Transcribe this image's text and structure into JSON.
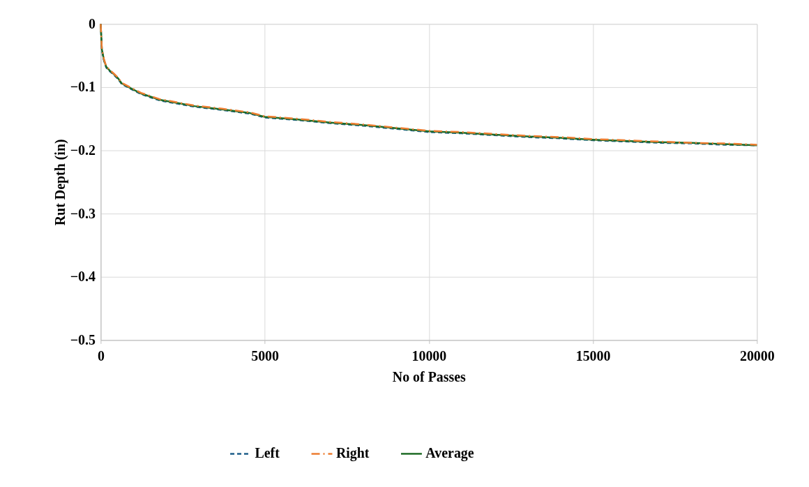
{
  "chart_data": {
    "type": "line",
    "xlabel": "No of Passes",
    "ylabel": "Rut Depth (in)",
    "x": [
      0,
      35,
      100,
      170,
      280,
      390,
      530,
      640,
      890,
      1230,
      1800,
      2860,
      3700,
      4550,
      5000,
      6000,
      7000,
      8000,
      9000,
      10000,
      11000,
      12000,
      13000,
      14000,
      15000,
      16000,
      17000,
      18000,
      19000,
      20000
    ],
    "series": [
      {
        "name": "Left",
        "color": "#1f5f8b",
        "line_style": "dashed",
        "values": [
          0,
          -0.041,
          -0.058,
          -0.069,
          -0.075,
          -0.08,
          -0.087,
          -0.095,
          -0.102,
          -0.111,
          -0.121,
          -0.131,
          -0.136,
          -0.142,
          -0.148,
          -0.152,
          -0.157,
          -0.161,
          -0.166,
          -0.171,
          -0.173,
          -0.176,
          -0.179,
          -0.181,
          -0.184,
          -0.186,
          -0.188,
          -0.189,
          -0.191,
          -0.192
        ]
      },
      {
        "name": "Right",
        "color": "#ed7d31",
        "line_style": "dashdot",
        "values": [
          0,
          -0.039,
          -0.056,
          -0.067,
          -0.073,
          -0.078,
          -0.085,
          -0.093,
          -0.1,
          -0.109,
          -0.119,
          -0.129,
          -0.134,
          -0.14,
          -0.146,
          -0.15,
          -0.155,
          -0.159,
          -0.164,
          -0.169,
          -0.171,
          -0.174,
          -0.177,
          -0.179,
          -0.182,
          -0.184,
          -0.186,
          -0.188,
          -0.189,
          -0.191
        ]
      },
      {
        "name": "Average",
        "color": "#1e6b25",
        "line_style": "solid",
        "values": [
          0,
          -0.04,
          -0.057,
          -0.068,
          -0.074,
          -0.079,
          -0.086,
          -0.094,
          -0.101,
          -0.11,
          -0.12,
          -0.13,
          -0.135,
          -0.141,
          -0.147,
          -0.151,
          -0.156,
          -0.16,
          -0.165,
          -0.17,
          -0.172,
          -0.175,
          -0.178,
          -0.18,
          -0.183,
          -0.185,
          -0.187,
          -0.188,
          -0.19,
          -0.192
        ]
      }
    ],
    "xlim": [
      0,
      20000
    ],
    "xticks": [
      0,
      5000,
      10000,
      15000,
      20000
    ],
    "ylim": [
      -0.5,
      0
    ],
    "yticks": [
      -0.5,
      -0.4,
      -0.3,
      -0.2,
      -0.1,
      0
    ],
    "grid": true,
    "legend": "bottom"
  }
}
